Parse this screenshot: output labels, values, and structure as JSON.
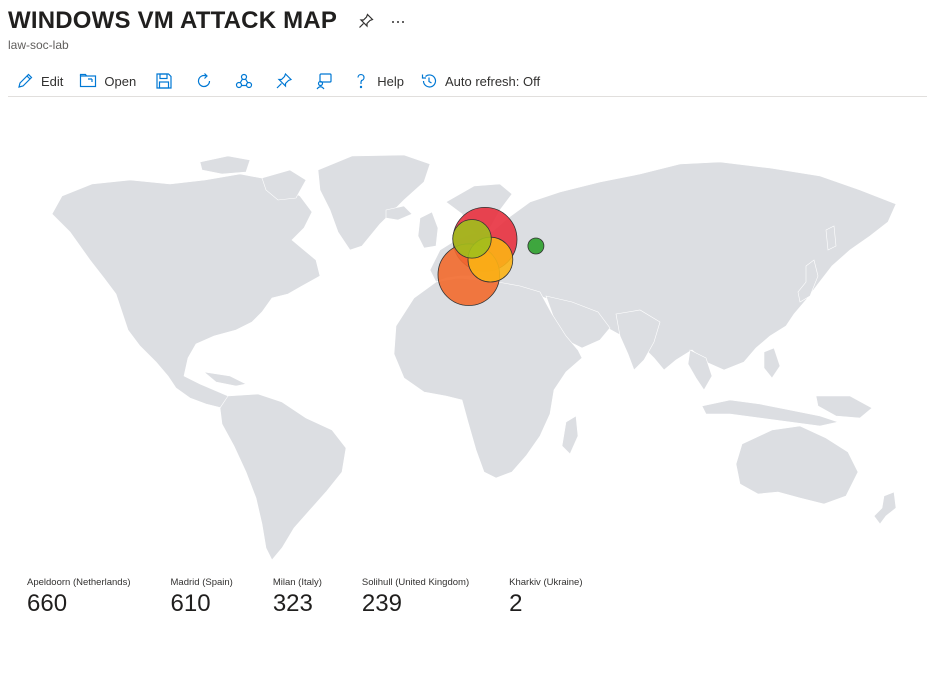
{
  "header": {
    "title": "WINDOWS VM ATTACK MAP",
    "subtitle": "law-soc-lab"
  },
  "toolbar": {
    "edit_label": "Edit",
    "open_label": "Open",
    "help_label": "Help",
    "autorefresh_label": "Auto refresh: Off"
  },
  "colors": {
    "land": "#dcdee2",
    "accent": "#0078d4"
  },
  "locations": [
    {
      "label": "Apeldoorn (Netherlands)",
      "value": "660",
      "color": "#e8313f",
      "lat": 52.21,
      "lon": 5.97
    },
    {
      "label": "Madrid (Spain)",
      "value": "610",
      "color": "#f26a2e",
      "lat": 40.42,
      "lon": -3.7
    },
    {
      "label": "Milan (Italy)",
      "value": "323",
      "color": "#fbb315",
      "lat": 45.46,
      "lon": 9.19
    },
    {
      "label": "Solihull (United Kingdom)",
      "value": "239",
      "color": "#a0bf1c",
      "lat": 52.41,
      "lon": -1.78
    },
    {
      "label": "Kharkiv (Ukraine)",
      "value": "2",
      "color": "#2ca02c",
      "lat": 49.99,
      "lon": 36.23
    }
  ]
}
